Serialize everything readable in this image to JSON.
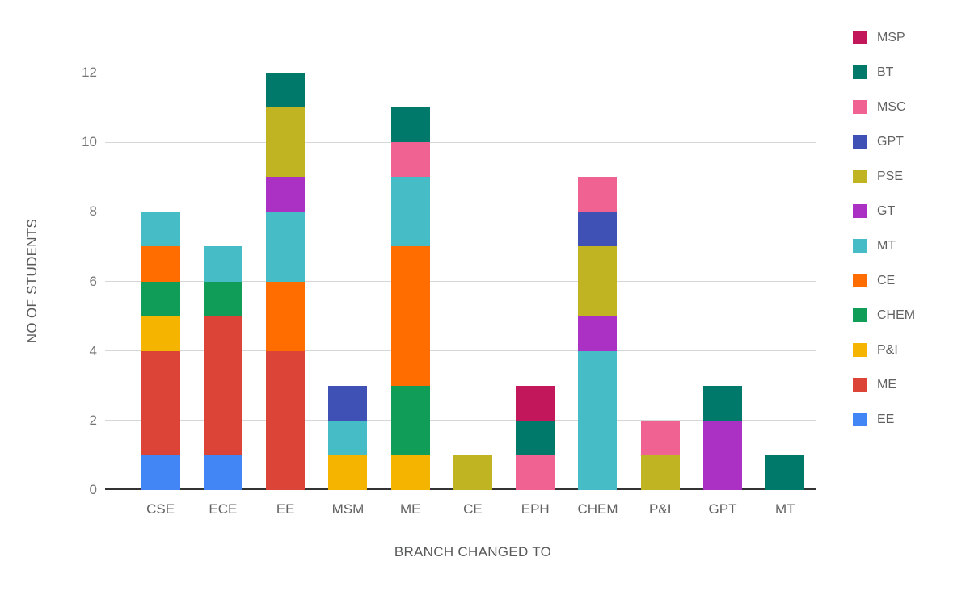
{
  "chart_data": {
    "type": "bar",
    "stacked": true,
    "xlabel": "BRANCH CHANGED TO",
    "ylabel": "NO OF STUDENTS",
    "categories": [
      "CSE",
      "ECE",
      "EE",
      "MSM",
      "ME",
      "CE",
      "EPH",
      "CHEM",
      "P&I",
      "GPT",
      "MT"
    ],
    "y_ticks": [
      0,
      2,
      4,
      6,
      8,
      10,
      12
    ],
    "ylim": [
      0,
      12
    ],
    "grid": true,
    "legend_position": "right",
    "legend_order_top_to_bottom": [
      "MSP",
      "BT",
      "MSC",
      "GPT",
      "PSE",
      "GT",
      "MT",
      "CE",
      "CHEM",
      "P&I",
      "ME",
      "EE"
    ],
    "colors": {
      "grid": "#d6d6d6",
      "baseline": "#333333",
      "tick_text": "#757575",
      "label_text": "#616161",
      "title_text": "#58595b"
    },
    "series": [
      {
        "name": "EE",
        "color": "#4285F4",
        "values": [
          1,
          1,
          0,
          0,
          0,
          0,
          0,
          0,
          0,
          0,
          0
        ]
      },
      {
        "name": "ME",
        "color": "#DB4437",
        "values": [
          3,
          4,
          4,
          0,
          0,
          0,
          0,
          0,
          0,
          0,
          0
        ]
      },
      {
        "name": "P&I",
        "color": "#F4B400",
        "values": [
          1,
          0,
          0,
          1,
          1,
          0,
          0,
          0,
          0,
          0,
          0
        ]
      },
      {
        "name": "CHEM",
        "color": "#0F9D58",
        "values": [
          1,
          1,
          0,
          0,
          2,
          0,
          0,
          0,
          0,
          0,
          0
        ]
      },
      {
        "name": "CE",
        "color": "#FF6D00",
        "values": [
          1,
          0,
          2,
          0,
          4,
          0,
          0,
          0,
          0,
          0,
          0
        ]
      },
      {
        "name": "MT",
        "color": "#46BDC6",
        "values": [
          1,
          1,
          2,
          1,
          2,
          0,
          0,
          4,
          0,
          0,
          0
        ]
      },
      {
        "name": "GT",
        "color": "#AB30C4",
        "values": [
          0,
          0,
          1,
          0,
          0,
          0,
          0,
          1,
          0,
          2,
          0
        ]
      },
      {
        "name": "PSE",
        "color": "#C0B422",
        "values": [
          0,
          0,
          2,
          0,
          0,
          1,
          0,
          2,
          1,
          0,
          0
        ]
      },
      {
        "name": "GPT",
        "color": "#3F51B5",
        "values": [
          0,
          0,
          0,
          1,
          0,
          0,
          0,
          1,
          0,
          0,
          0
        ]
      },
      {
        "name": "MSC",
        "color": "#F06292",
        "values": [
          0,
          0,
          0,
          0,
          1,
          0,
          1,
          1,
          1,
          0,
          0
        ]
      },
      {
        "name": "BT",
        "color": "#00796B",
        "values": [
          0,
          0,
          1,
          0,
          1,
          0,
          1,
          0,
          0,
          1,
          1
        ]
      },
      {
        "name": "MSP",
        "color": "#C2185B",
        "values": [
          0,
          0,
          0,
          0,
          0,
          0,
          1,
          0,
          0,
          0,
          0
        ]
      }
    ]
  }
}
